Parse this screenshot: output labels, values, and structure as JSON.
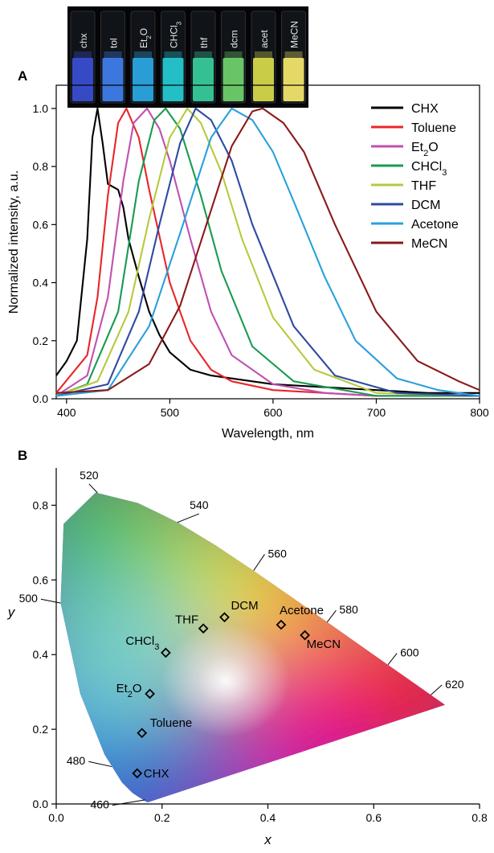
{
  "panelA": {
    "label": "A",
    "vial_labels": [
      "chx",
      "tol",
      "Et2O",
      "CHCl3",
      "thf",
      "dcm",
      "acet",
      "MeCN"
    ],
    "vial_colors": [
      "#3a4dd0",
      "#3f7ce8",
      "#2aa4e0",
      "#26c7d0",
      "#38c99a",
      "#6fce6a",
      "#d4d64a",
      "#f2e36b"
    ]
  },
  "panelB": {
    "label": "B"
  },
  "chart_data": [
    {
      "type": "line",
      "xlabel": "Wavelength, nm",
      "ylabel": "Normalized intensity, a.u.",
      "xlim": [
        390,
        800
      ],
      "ylim": [
        0,
        1.08
      ],
      "xticks": [
        400,
        500,
        600,
        700,
        800
      ],
      "yticks": [
        0.0,
        0.2,
        0.4,
        0.6,
        0.8,
        1.0
      ],
      "legend_position": "top-right",
      "series": [
        {
          "name": "CHX",
          "color": "#000000",
          "x": [
            390,
            400,
            410,
            420,
            425,
            430,
            435,
            440,
            445,
            450,
            455,
            460,
            470,
            480,
            490,
            500,
            520,
            540,
            560,
            600,
            650,
            700,
            750,
            800
          ],
          "y": [
            0.08,
            0.13,
            0.2,
            0.55,
            0.9,
            1.0,
            0.88,
            0.74,
            0.73,
            0.72,
            0.66,
            0.55,
            0.42,
            0.3,
            0.22,
            0.16,
            0.1,
            0.08,
            0.07,
            0.05,
            0.04,
            0.03,
            0.02,
            0.02
          ]
        },
        {
          "name": "Toluene",
          "color": "#e8262a",
          "x": [
            390,
            420,
            430,
            440,
            450,
            458,
            470,
            480,
            500,
            520,
            540,
            560,
            600,
            650,
            700,
            800
          ],
          "y": [
            0.02,
            0.15,
            0.35,
            0.7,
            0.95,
            1.0,
            0.9,
            0.72,
            0.4,
            0.2,
            0.1,
            0.06,
            0.03,
            0.02,
            0.01,
            0.01
          ]
        },
        {
          "name": "Et2O",
          "color": "#c050b0",
          "x": [
            390,
            420,
            440,
            455,
            465,
            478,
            490,
            500,
            520,
            540,
            560,
            600,
            650,
            700,
            800
          ],
          "y": [
            0.01,
            0.08,
            0.35,
            0.75,
            0.95,
            1.0,
            0.93,
            0.82,
            0.55,
            0.3,
            0.15,
            0.05,
            0.02,
            0.01,
            0.01
          ]
        },
        {
          "name": "CHCl3",
          "color": "#1a9a50",
          "x": [
            390,
            420,
            450,
            470,
            485,
            496,
            510,
            530,
            550,
            580,
            620,
            700,
            800
          ],
          "y": [
            0.01,
            0.05,
            0.3,
            0.75,
            0.96,
            1.0,
            0.93,
            0.7,
            0.44,
            0.18,
            0.06,
            0.01,
            0.01
          ]
        },
        {
          "name": "THF",
          "color": "#b8c93e",
          "x": [
            390,
            430,
            460,
            480,
            500,
            517,
            530,
            550,
            570,
            600,
            640,
            700,
            800
          ],
          "y": [
            0.01,
            0.06,
            0.3,
            0.62,
            0.9,
            1.0,
            0.95,
            0.78,
            0.55,
            0.28,
            0.1,
            0.02,
            0.01
          ]
        },
        {
          "name": "DCM",
          "color": "#2f4aa0",
          "x": [
            390,
            440,
            470,
            490,
            510,
            525,
            540,
            560,
            580,
            620,
            660,
            720,
            800
          ],
          "y": [
            0.01,
            0.05,
            0.3,
            0.6,
            0.88,
            1.0,
            0.96,
            0.82,
            0.6,
            0.25,
            0.08,
            0.02,
            0.01
          ]
        },
        {
          "name": "Acetone",
          "color": "#2aa0dc",
          "x": [
            390,
            440,
            480,
            510,
            540,
            560,
            580,
            600,
            620,
            650,
            680,
            720,
            760,
            800
          ],
          "y": [
            0.01,
            0.03,
            0.25,
            0.57,
            0.9,
            1.0,
            0.96,
            0.85,
            0.68,
            0.42,
            0.2,
            0.07,
            0.03,
            0.01
          ]
        },
        {
          "name": "MeCN",
          "color": "#8a1a1a",
          "x": [
            390,
            440,
            480,
            510,
            540,
            560,
            580,
            590,
            610,
            630,
            660,
            700,
            740,
            780,
            800
          ],
          "y": [
            0.02,
            0.03,
            0.12,
            0.32,
            0.65,
            0.87,
            0.99,
            1.0,
            0.95,
            0.85,
            0.6,
            0.3,
            0.13,
            0.06,
            0.03
          ]
        }
      ]
    },
    {
      "type": "scatter",
      "xlabel": "x",
      "ylabel": "y",
      "xlim": [
        0,
        0.8
      ],
      "ylim": [
        0,
        0.9
      ],
      "xticks": [
        0.0,
        0.2,
        0.4,
        0.6,
        0.8
      ],
      "yticks": [
        0.0,
        0.2,
        0.4,
        0.6,
        0.8
      ],
      "locus_labels": [
        "460",
        "480",
        "500",
        "520",
        "540",
        "560",
        "580",
        "600",
        "620"
      ],
      "points": [
        {
          "name": "CHX",
          "x": 0.153,
          "y": 0.082
        },
        {
          "name": "Toluene",
          "x": 0.162,
          "y": 0.19
        },
        {
          "name": "Et2O",
          "x": 0.177,
          "y": 0.295
        },
        {
          "name": "CHCl3",
          "x": 0.207,
          "y": 0.405
        },
        {
          "name": "THF",
          "x": 0.278,
          "y": 0.47
        },
        {
          "name": "DCM",
          "x": 0.318,
          "y": 0.5
        },
        {
          "name": "Acetone",
          "x": 0.425,
          "y": 0.48
        },
        {
          "name": "MeCN",
          "x": 0.47,
          "y": 0.452
        }
      ]
    }
  ]
}
